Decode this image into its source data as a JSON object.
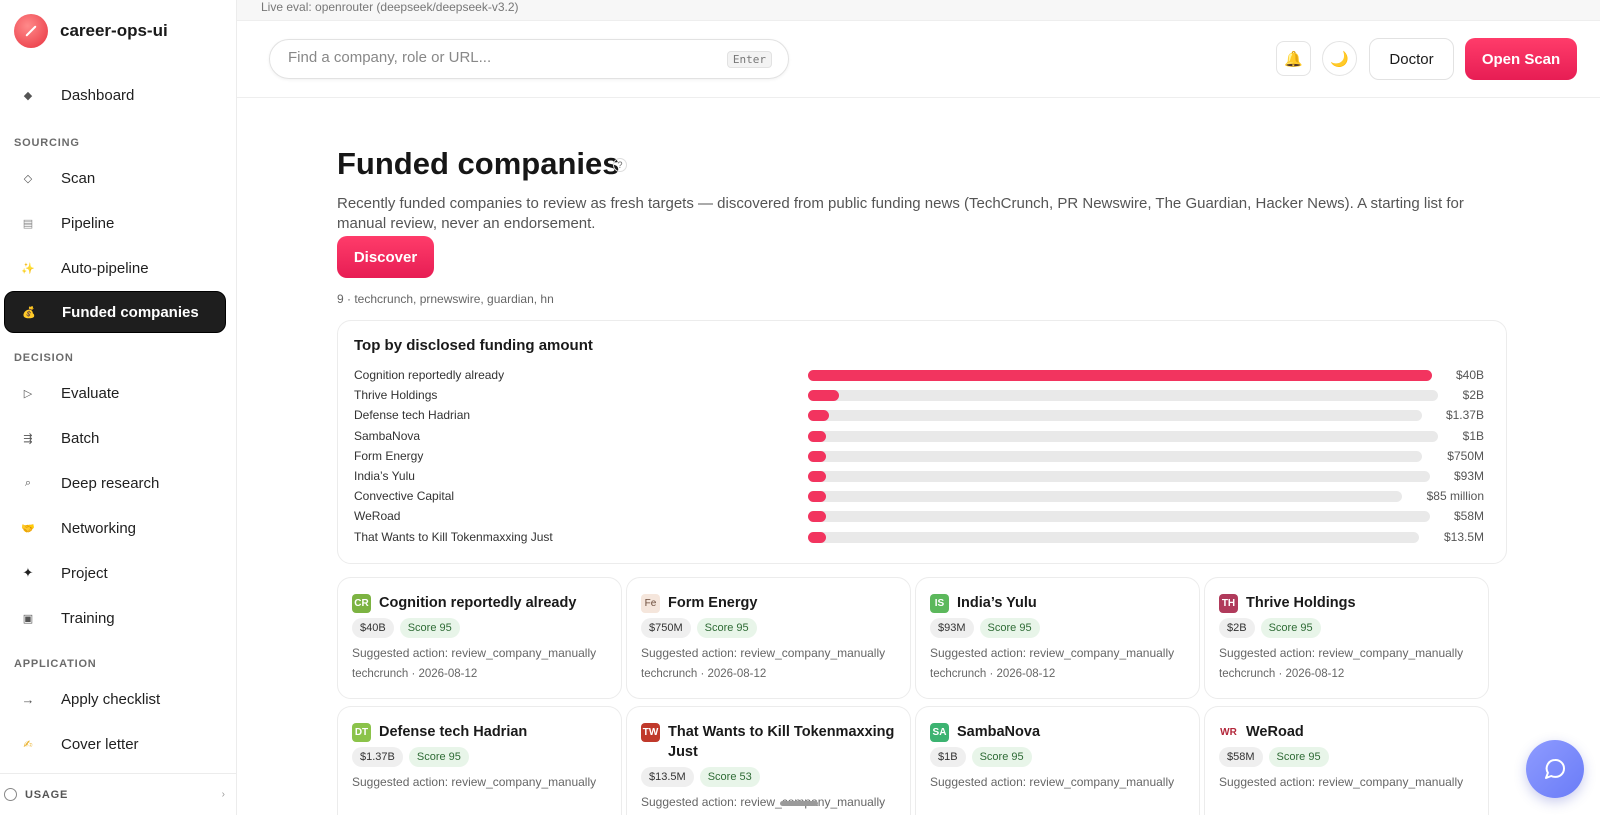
{
  "brand": {
    "name": "career-ops-ui"
  },
  "eval_bar": {
    "text": "Live eval: openrouter (deepseek/deepseek-v3.2)"
  },
  "sidebar": {
    "dashboard": {
      "label": "Dashboard",
      "icon": "diamond-icon"
    },
    "sections": [
      {
        "label": "SOURCING"
      },
      {
        "label": "DECISION"
      },
      {
        "label": "APPLICATION"
      }
    ],
    "items": [
      {
        "label": "Scan",
        "icon": "diamond-outline-icon"
      },
      {
        "label": "Pipeline",
        "icon": "pipeline-icon"
      },
      {
        "label": "Auto-pipeline",
        "icon": "sparkle-icon"
      },
      {
        "label": "Funded companies",
        "icon": "money-bag-icon"
      },
      {
        "label": "Evaluate",
        "icon": "play-outline-icon"
      },
      {
        "label": "Batch",
        "icon": "batch-icon"
      },
      {
        "label": "Deep research",
        "icon": "magnifier-icon"
      },
      {
        "label": "Networking",
        "icon": "handshake-icon"
      },
      {
        "label": "Project",
        "icon": "star-icon"
      },
      {
        "label": "Training",
        "icon": "square-icon"
      },
      {
        "label": "Apply checklist",
        "icon": "arrow-right-icon"
      },
      {
        "label": "Cover letter",
        "icon": "pen-icon"
      }
    ],
    "footer": {
      "label": "USAGE"
    }
  },
  "topbar": {
    "search_placeholder": "Find a company, role or URL...",
    "search_hint": "Enter",
    "doctor_label": "Doctor",
    "open_scan_label": "Open Scan"
  },
  "page": {
    "title": "Funded companies",
    "help": "?",
    "description": "Recently funded companies to review as fresh targets — discovered from public funding news (TechCrunch, PR Newswire, The Guardian, Hacker News). A starting list for manual review, never an endorsement.",
    "discover_label": "Discover",
    "sources_line": "9 · techcrunch, prnewswire, guardian, hn"
  },
  "chart_data": {
    "type": "bar",
    "orientation": "horizontal",
    "title": "Top by disclosed funding amount",
    "categories": [
      "Cognition reportedly already",
      "Thrive Holdings",
      "Defense tech Hadrian",
      "SambaNova",
      "Form Energy",
      "India’s Yulu",
      "Convective Capital",
      "WeRoad",
      "That Wants to Kill Tokenmaxxing Just"
    ],
    "value_labels": [
      "$40B",
      "$2B",
      "$1.37B",
      "$1B",
      "$750M",
      "$93M",
      "$85 million",
      "$58M",
      "$13.5M"
    ],
    "values_usd": [
      40000000000,
      2000000000,
      1370000000,
      1000000000,
      750000000,
      93000000,
      85000000,
      58000000,
      13500000
    ]
  },
  "cards": [
    {
      "initials": "CR",
      "color": "#7cb342",
      "name": "Cognition reportedly already",
      "amount": "$40B",
      "score": "Score 95",
      "action": "Suggested action: review_company_manually",
      "meta": "techcrunch · 2026-08-12"
    },
    {
      "initials": "Fe",
      "color": "#f5e6dc",
      "name": "Form Energy",
      "amount": "$750M",
      "score": "Score 95",
      "action": "Suggested action: review_company_manually",
      "meta": "techcrunch · 2026-08-12"
    },
    {
      "initials": "IS",
      "color": "#5cb85c",
      "name": "India’s Yulu",
      "amount": "$93M",
      "score": "Score 95",
      "action": "Suggested action: review_company_manually",
      "meta": "techcrunch · 2026-08-12"
    },
    {
      "initials": "TH",
      "color": "#b03a5b",
      "name": "Thrive Holdings",
      "amount": "$2B",
      "score": "Score 95",
      "action": "Suggested action: review_company_manually",
      "meta": "techcrunch · 2026-08-12"
    },
    {
      "initials": "DT",
      "color": "#8bc34a",
      "name": "Defense tech Hadrian",
      "amount": "$1.37B",
      "score": "Score 95",
      "action": "Suggested action: review_company_manually",
      "meta": ""
    },
    {
      "initials": "TW",
      "color": "#c0392b",
      "name": "That Wants to Kill Tokenmaxxing Just",
      "amount": "$13.5M",
      "score": "Score 53",
      "action": "Suggested action: review_company_manually",
      "meta": ""
    },
    {
      "initials": "SA",
      "color": "#3cb371",
      "name": "SambaNova",
      "amount": "$1B",
      "score": "Score 95",
      "action": "Suggested action: review_company_manually",
      "meta": ""
    },
    {
      "initials": "WR",
      "color": "#ffffff",
      "name": "WeRoad",
      "amount": "$58M",
      "score": "Score 95",
      "action": "Suggested action: review_company_manually",
      "meta": ""
    }
  ]
}
